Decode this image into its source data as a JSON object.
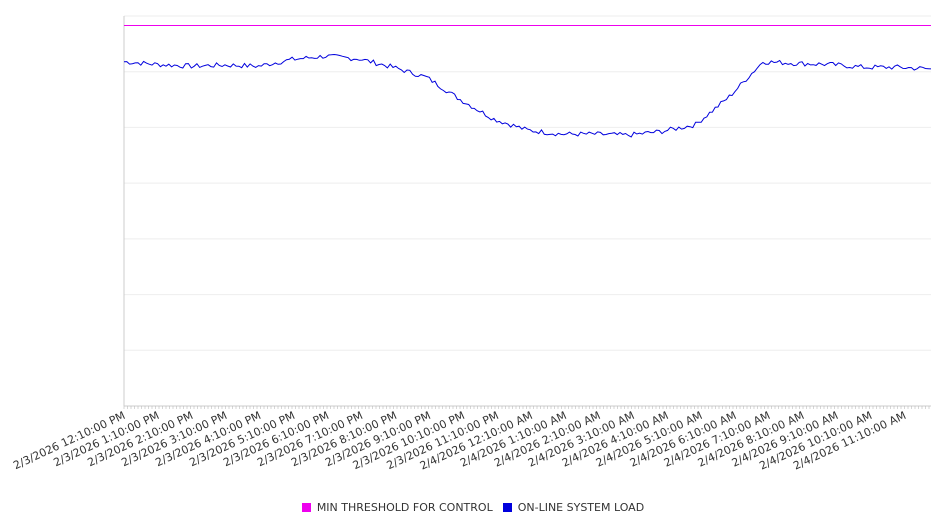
{
  "chart_data": {
    "type": "line",
    "title": "",
    "xlabel": "",
    "ylabel": "",
    "y_tick_labels_shown": false,
    "grid": "horizontal",
    "legend_position": "bottom-center",
    "x_tick_labels": [
      "2/3/2026 12:10:00 PM",
      "2/3/2026 1:10:00 PM",
      "2/3/2026 2:10:00 PM",
      "2/3/2026 3:10:00 PM",
      "2/3/2026 4:10:00 PM",
      "2/3/2026 5:10:00 PM",
      "2/3/2026 6:10:00 PM",
      "2/3/2026 7:10:00 PM",
      "2/3/2026 8:10:00 PM",
      "2/3/2026 9:10:00 PM",
      "2/3/2026 10:10:00 PM",
      "2/3/2026 11:10:00 PM",
      "2/4/2026 12:10:00 AM",
      "2/4/2026 1:10:00 AM",
      "2/4/2026 2:10:00 AM",
      "2/4/2026 3:10:00 AM",
      "2/4/2026 4:10:00 AM",
      "2/4/2026 5:10:00 AM",
      "2/4/2026 6:10:00 AM",
      "2/4/2026 7:10:00 AM",
      "2/4/2026 8:10:00 AM",
      "2/4/2026 9:10:00 AM",
      "2/4/2026 10:10:00 AM",
      "2/4/2026 11:10:00 AM"
    ],
    "series": [
      {
        "name": "MIN THRESHOLD FOR CONTROL",
        "color": "#ee00ee",
        "values": [
          98.3,
          98.3,
          98.3,
          98.3,
          98.3,
          98.3,
          98.3,
          98.3,
          98.3,
          98.3,
          98.3,
          98.3,
          98.3,
          98.3,
          98.3,
          98.3,
          98.3,
          98.3,
          98.3,
          98.3,
          98.3,
          98.3,
          98.3,
          98.3,
          98.3
        ]
      },
      {
        "name": "ON-LINE SYSTEM LOAD",
        "color": "#0000dd",
        "values": [
          91.8,
          91.3,
          91.0,
          91.2,
          91.0,
          92.2,
          92.8,
          92.3,
          90.8,
          89.0,
          85.0,
          81.5,
          79.5,
          78.8,
          78.8,
          78.6,
          79.3,
          80.5,
          85.5,
          91.8,
          91.5,
          91.3,
          90.8,
          90.8,
          90.5
        ]
      }
    ]
  }
}
